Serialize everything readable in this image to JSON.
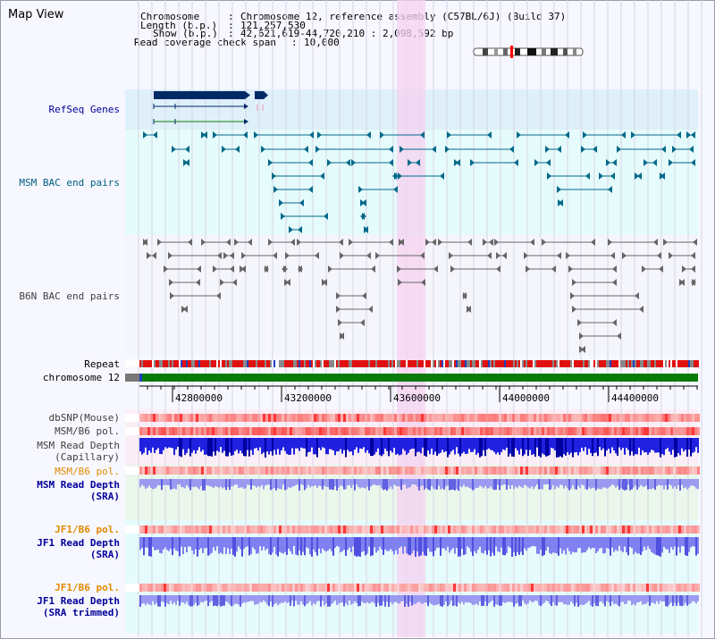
{
  "title": "Map View",
  "header": {
    "chromosome_key": "Chromosome",
    "chromosome_val": "Chromosome 12, reference assembly (C57BL/6J) (Build 37)",
    "length_key": "Length (b.p.)",
    "length_val": "121,257,530",
    "show_key": "Show (b.p.)",
    "show_val": "42,621,619-44,720,210 : 2,098,592 bp",
    "coverage_key": "Read coverage check span",
    "coverage_val": "10,000"
  },
  "tracks": {
    "refseq": "RefSeq Genes",
    "msm_bac": "MSM BAC end pairs",
    "b6n_bac": "B6N BAC end pairs",
    "repeat": "Repeat",
    "chromosome": "chromosome 12",
    "dbsnp": "dbSNP(Mouse)",
    "msm_pol_1": "MSM/B6 pol.",
    "msm_depth_cap_1": "MSM Read Depth",
    "msm_depth_cap_2": "(Capillary)",
    "msm_pol_2": "MSM/B6 pol.",
    "msm_depth_sra_1": "MSM Read Depth",
    "msm_depth_sra_2": "(SRA)",
    "jf1_pol_1": "JF1/B6 pol.",
    "jf1_depth_sra_1": "JF1 Read Depth",
    "jf1_depth_sra_2": "(SRA)",
    "jf1_pol_2": "JF1/B6 pol.",
    "jf1_depth_trim_1": "JF1 Read Depth",
    "jf1_depth_trim_2": "(SRA trimmed)"
  },
  "ruler": {
    "ticks": [
      "42800000",
      "43200000",
      "43600000",
      "44000000",
      "44400000"
    ]
  },
  "colors": {
    "label_blue": "#000099",
    "label_teal": "#006080",
    "label_gray": "#404040",
    "label_orange": "#e08a00",
    "highlight": "#f5d2f0",
    "gene": "#002a66",
    "msm_feature": "#006a8a",
    "b6n_feature": "#666666",
    "chromosome_bar": "#0a7a0a"
  }
}
